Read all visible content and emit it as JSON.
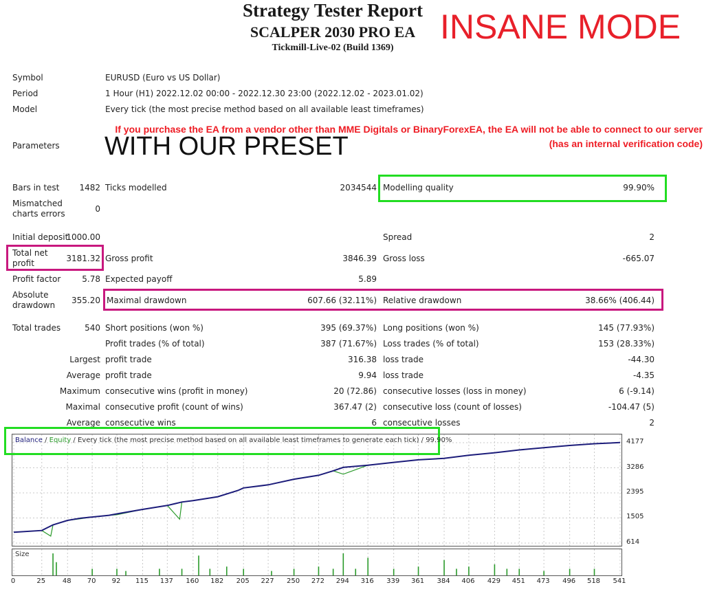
{
  "header": {
    "title": "Strategy Tester Report",
    "ea_name": "SCALPER 2030 PRO EA",
    "server": "Tickmill-Live-02 (Build 1369)",
    "overlay": "INSANE MODE"
  },
  "info": {
    "symbol_label": "Symbol",
    "symbol_value": "EURUSD (Euro vs US Dollar)",
    "period_label": "Period",
    "period_value": "1 Hour (H1) 2022.12.02 00:00 - 2022.12.30 23:00 (2022.12.02 - 2023.01.02)",
    "model_label": "Model",
    "model_value": "Every tick (the most precise method based on all available least timeframes)",
    "parameters_label": "Parameters",
    "parameters_value": "WITH OUR PRESET",
    "warning_line1": "If you purchase the EA from a vendor other than MME Digitals or BinaryForexEA, the EA will not be able to connect to our server",
    "warning_line2": "(has an internal verification code)"
  },
  "stats": {
    "bars_label": "Bars in test",
    "bars_value": "1482",
    "ticks_label": "Ticks modelled",
    "ticks_value": "2034544",
    "quality_label": "Modelling quality",
    "quality_value": "99.90%",
    "mismatch_label_1": "Mismatched",
    "mismatch_label_2": "charts errors",
    "mismatch_value": "0",
    "deposit_label": "Initial deposit",
    "deposit_value": "1000.00",
    "spread_label": "Spread",
    "spread_value": "2",
    "net_label_1": "Total net",
    "net_label_2": "profit",
    "net_value": "3181.32",
    "gross_profit_label": "Gross profit",
    "gross_profit_value": "3846.39",
    "gross_loss_label": "Gross loss",
    "gross_loss_value": "-665.07",
    "pf_label": "Profit factor",
    "pf_value": "5.78",
    "payoff_label": "Expected payoff",
    "payoff_value": "5.89",
    "absdd_label_1": "Absolute",
    "absdd_label_2": "drawdown",
    "absdd_value": "355.20",
    "maxdd_label": "Maximal drawdown",
    "maxdd_value": "607.66 (32.11%)",
    "reldd_label": "Relative drawdown",
    "reldd_value": "38.66% (406.44)",
    "trades_label": "Total trades",
    "trades_value": "540",
    "short_label": "Short positions (won %)",
    "short_value": "395 (69.37%)",
    "long_label": "Long positions (won %)",
    "long_value": "145 (77.93%)",
    "profit_trades_label": "Profit trades (% of total)",
    "profit_trades_value": "387 (71.67%)",
    "loss_trades_label": "Loss trades (% of total)",
    "loss_trades_value": "153 (28.33%)",
    "largest_label": "Largest",
    "largest_profit_label": "profit trade",
    "largest_profit_value": "316.38",
    "largest_loss_label": "loss trade",
    "largest_loss_value": "-44.30",
    "average_label": "Average",
    "average_profit_label": "profit trade",
    "average_profit_value": "9.94",
    "average_loss_label": "loss trade",
    "average_loss_value": "-4.35",
    "maximum_label": "Maximum",
    "max_cw_label": "consecutive wins (profit in money)",
    "max_cw_value": "20 (72.86)",
    "max_cl_label": "consecutive losses (loss in money)",
    "max_cl_value": "6 (-9.14)",
    "maximal_label": "Maximal",
    "maximal_cp_label": "consecutive profit (count of wins)",
    "maximal_cp_value": "367.47 (2)",
    "maximal_cl_label": "consecutive loss (count of losses)",
    "maximal_cl_value": "-104.47 (5)",
    "average2_label": "Average",
    "avg_cw_label": "consecutive wins",
    "avg_cw_value": "6",
    "avg_cl_label": "consecutive losses",
    "avg_cl_value": "2"
  },
  "chart_legend": {
    "balance": "Balance",
    "sep1": " / ",
    "equity": "Equity",
    "rest": " / Every tick (the most precise method based on all available least timeframes to generate each tick) / 99.90%"
  },
  "size_label": "Size",
  "colors": {
    "balance": "#1c1c7a",
    "equity": "#2a9a2a",
    "warning": "#ee1c24",
    "highlight_green": "#22dd22",
    "highlight_magenta": "#c8187e"
  },
  "chart_data": {
    "type": "line",
    "xlabel": "",
    "ylabel": "",
    "xlim": [
      0,
      541
    ],
    "ylim": [
      614,
      4177
    ],
    "x_ticks": [
      0,
      25,
      48,
      70,
      92,
      115,
      137,
      160,
      182,
      205,
      227,
      250,
      272,
      294,
      316,
      339,
      361,
      384,
      406,
      429,
      451,
      473,
      496,
      518,
      541
    ],
    "y_ticks": [
      4177,
      3286,
      2395,
      1505,
      614
    ],
    "series": [
      {
        "name": "Balance",
        "x": [
          0,
          25,
          35,
          48,
          60,
          70,
          85,
          92,
          115,
          137,
          150,
          160,
          182,
          200,
          205,
          227,
          250,
          272,
          285,
          294,
          316,
          339,
          361,
          384,
          406,
          429,
          451,
          473,
          496,
          518,
          541
        ],
        "y": [
          1000,
          1060,
          1260,
          1420,
          1500,
          1540,
          1600,
          1650,
          1810,
          1950,
          2070,
          2120,
          2260,
          2480,
          2570,
          2680,
          2880,
          3020,
          3180,
          3300,
          3380,
          3480,
          3570,
          3620,
          3730,
          3820,
          3920,
          4000,
          4080,
          4140,
          4181
        ]
      },
      {
        "name": "Equity",
        "x": [
          0,
          25,
          33,
          35,
          48,
          60,
          70,
          85,
          92,
          115,
          137,
          148,
          150,
          160,
          182,
          200,
          205,
          227,
          250,
          272,
          285,
          294,
          316,
          339,
          361,
          384,
          406,
          429,
          451,
          473,
          496,
          518,
          541
        ],
        "y": [
          1000,
          1060,
          860,
          1260,
          1420,
          1480,
          1540,
          1600,
          1620,
          1810,
          1950,
          1460,
          2070,
          2120,
          2260,
          2480,
          2570,
          2680,
          2880,
          3020,
          3180,
          3060,
          3380,
          3480,
          3570,
          3620,
          3730,
          3820,
          3920,
          4000,
          4080,
          4140,
          4181
        ]
      }
    ],
    "size_series": {
      "name": "Size",
      "x": [
        35,
        38,
        70,
        92,
        100,
        130,
        150,
        165,
        175,
        190,
        205,
        230,
        250,
        272,
        285,
        294,
        305,
        316,
        339,
        361,
        384,
        395,
        406,
        429,
        440,
        451,
        473,
        496,
        518
      ],
      "y": [
        1.0,
        0.6,
        0.3,
        0.3,
        0.2,
        0.3,
        0.3,
        0.9,
        0.3,
        0.4,
        0.3,
        0.2,
        0.3,
        0.4,
        0.3,
        1.0,
        0.3,
        0.8,
        0.3,
        0.4,
        0.7,
        0.3,
        0.4,
        0.5,
        0.3,
        0.3,
        0.2,
        0.3,
        0.3
      ]
    }
  }
}
